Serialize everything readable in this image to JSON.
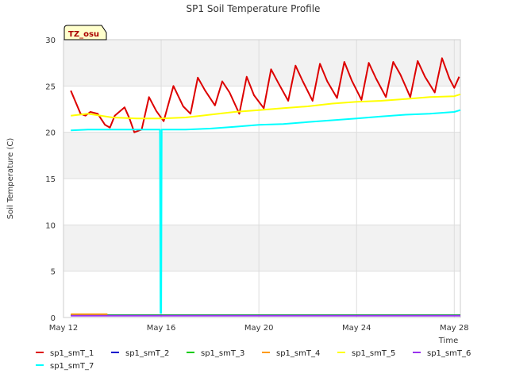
{
  "chart_data": {
    "type": "line",
    "title": "SP1 Soil Temperature Profile",
    "xlabel": "Time",
    "ylabel": "Soil Temperature (C)",
    "badge": "TZ_osu",
    "x_range_days": [
      0,
      16.25
    ],
    "x_origin_date": "May 12",
    "ylim": [
      0,
      30
    ],
    "y_ticks": [
      0,
      5,
      10,
      15,
      20,
      25,
      30
    ],
    "x_ticks": [
      {
        "day": 0,
        "label": "May 12"
      },
      {
        "day": 4,
        "label": "May 16"
      },
      {
        "day": 8,
        "label": "May 20"
      },
      {
        "day": 12,
        "label": "May 24"
      },
      {
        "day": 16,
        "label": "May 28"
      }
    ],
    "grid": true,
    "legend_position": "bottom",
    "series": [
      {
        "name": "sp1_smT_1",
        "color": "#dd0000",
        "x": [
          0.3,
          0.7,
          0.9,
          1.1,
          1.4,
          1.7,
          1.9,
          2.1,
          2.5,
          2.7,
          2.9,
          3.2,
          3.5,
          3.8,
          4.1,
          4.5,
          4.9,
          5.2,
          5.5,
          5.8,
          6.2,
          6.5,
          6.8,
          7.2,
          7.5,
          7.8,
          8.2,
          8.5,
          8.8,
          9.2,
          9.5,
          9.8,
          10.2,
          10.5,
          10.8,
          11.2,
          11.5,
          11.8,
          12.2,
          12.5,
          12.8,
          13.2,
          13.5,
          13.8,
          14.2,
          14.5,
          14.8,
          15.2,
          15.5,
          15.8,
          16.0,
          16.2
        ],
        "y": [
          24.5,
          22.0,
          21.8,
          22.2,
          22.0,
          20.8,
          20.5,
          21.8,
          22.7,
          21.5,
          20.0,
          20.3,
          23.8,
          22.3,
          21.2,
          25.0,
          22.8,
          22.0,
          25.9,
          24.5,
          22.9,
          25.5,
          24.3,
          22.0,
          26.0,
          24.0,
          22.6,
          26.8,
          25.3,
          23.4,
          27.2,
          25.5,
          23.4,
          27.4,
          25.5,
          23.7,
          27.6,
          25.6,
          23.5,
          27.5,
          25.8,
          23.8,
          27.6,
          26.2,
          23.8,
          27.7,
          26.0,
          24.3,
          28.0,
          25.8,
          24.8,
          26.0
        ]
      },
      {
        "name": "sp1_smT_2",
        "color": "#0000cc",
        "x": [
          0.3,
          16.25
        ],
        "y": [
          0.25,
          0.25
        ]
      },
      {
        "name": "sp1_smT_3",
        "color": "#00cc00",
        "x": [
          0.3,
          16.25
        ],
        "y": [
          0.25,
          0.25
        ]
      },
      {
        "name": "sp1_smT_4",
        "color": "#ff9900",
        "x": [
          0.3,
          1.8
        ],
        "y": [
          0.35,
          0.35
        ]
      },
      {
        "name": "sp1_smT_5",
        "color": "#ffff00",
        "x": [
          0.3,
          1.0,
          2.0,
          3.0,
          4.0,
          5.0,
          6.0,
          7.0,
          8.0,
          9.0,
          10.0,
          11.0,
          12.0,
          13.0,
          14.0,
          15.0,
          16.0,
          16.25
        ],
        "y": [
          21.8,
          22.0,
          21.6,
          21.5,
          21.5,
          21.6,
          21.9,
          22.2,
          22.4,
          22.6,
          22.8,
          23.1,
          23.3,
          23.4,
          23.6,
          23.8,
          23.9,
          24.1
        ]
      },
      {
        "name": "sp1_smT_6",
        "color": "#9933ee",
        "x": [
          0.3,
          16.25
        ],
        "y": [
          0.2,
          0.2
        ]
      },
      {
        "name": "sp1_smT_7",
        "color": "#00ffff",
        "x": [
          0.3,
          1.0,
          2.0,
          3.0,
          3.95,
          3.97,
          4.0,
          4.02,
          5.0,
          6.0,
          7.0,
          8.0,
          9.0,
          10.0,
          11.0,
          12.0,
          13.0,
          14.0,
          15.0,
          16.0,
          16.25
        ],
        "y": [
          20.2,
          20.3,
          20.3,
          20.3,
          20.3,
          0.5,
          0.5,
          20.3,
          20.3,
          20.4,
          20.6,
          20.8,
          20.9,
          21.1,
          21.3,
          21.5,
          21.7,
          21.9,
          22.0,
          22.2,
          22.4
        ]
      }
    ]
  }
}
